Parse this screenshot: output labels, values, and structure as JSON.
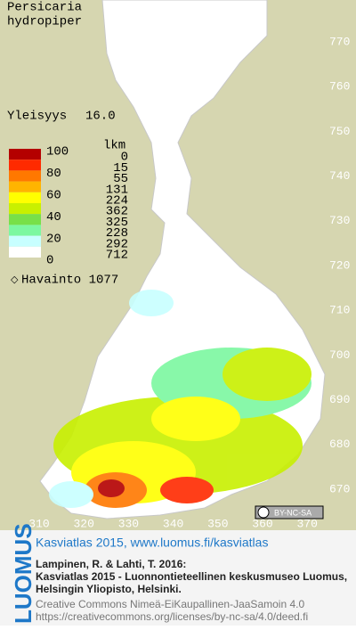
{
  "map": {
    "title_line1": "Persicaria",
    "title_line2": "hydropiper",
    "frequency_label": "Yleisyys",
    "frequency_value": "16.0",
    "legend": {
      "scale_labels": [
        "100",
        "80",
        "60",
        "40",
        "20",
        "0"
      ],
      "count_header": "lkm",
      "counts": [
        "0",
        "15",
        "55",
        "131",
        "224",
        "362",
        "325",
        "228",
        "292",
        "712"
      ],
      "colors": [
        "#b40000",
        "#ff2a00",
        "#ff7800",
        "#ffb400",
        "#ffff00",
        "#c8f000",
        "#78e048",
        "#7cf8a0",
        "#c8ffff",
        "#ffffff"
      ]
    },
    "observation_label": "Havainto 1077",
    "grid_y": [
      "770",
      "760",
      "750",
      "740",
      "730",
      "720",
      "710",
      "700",
      "690",
      "680",
      "670"
    ],
    "grid_x": [
      "310",
      "320",
      "330",
      "340",
      "350",
      "360",
      "370"
    ],
    "license_badge": "BY-NC-SA"
  },
  "footer": {
    "brand": "LUOMUS",
    "link": "Kasviatlas 2015, www.luomus.fi/kasviatlas",
    "citation": [
      "Lampinen, R. & Lahti, T. 2016:",
      "Kasviatlas 2015 - Luonnontieteellinen keskusmuseo Luomus,",
      "Helsingin Yliopisto, Helsinki."
    ],
    "license": [
      "Creative Commons Nimeä-EiKaupallinen-JaaSamoin 4.0",
      "https://creativecommons.org/licenses/by-nc-sa/4.0/deed.fi"
    ]
  }
}
